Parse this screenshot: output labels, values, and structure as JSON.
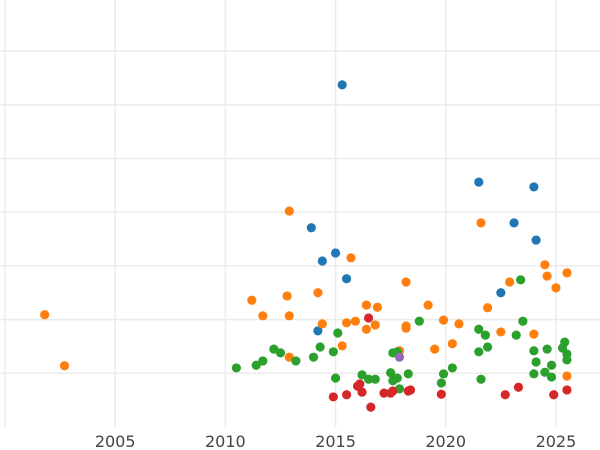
{
  "chart_data": {
    "type": "scatter",
    "title": "",
    "xlabel": "",
    "ylabel": "",
    "xlim": [
      2000,
      2027
    ],
    "ylim": [
      0,
      7.95
    ],
    "x_ticks": [
      "2005",
      "2010",
      "2015",
      "2020",
      "2025"
    ],
    "y_gridlines": [
      1,
      2,
      3,
      4,
      5,
      6,
      7
    ],
    "grid": true,
    "legend": "none",
    "series": [
      {
        "color": "#1f77b4",
        "points": [
          [
            2015.3,
            6.37
          ],
          [
            2021.5,
            4.56
          ],
          [
            2024.0,
            4.47
          ],
          [
            2013.9,
            3.71
          ],
          [
            2023.1,
            3.8
          ],
          [
            2024.1,
            3.48
          ],
          [
            2015.0,
            3.24
          ],
          [
            2014.4,
            3.09
          ],
          [
            2015.5,
            2.76
          ],
          [
            2022.5,
            2.5
          ],
          [
            2014.2,
            1.79
          ]
        ]
      },
      {
        "color": "#ff7f0e",
        "points": [
          [
            2001.8,
            2.09
          ],
          [
            2002.7,
            1.14
          ],
          [
            2012.9,
            4.02
          ],
          [
            2021.6,
            3.8
          ],
          [
            2015.7,
            3.15
          ],
          [
            2024.5,
            3.02
          ],
          [
            2024.6,
            2.81
          ],
          [
            2025.5,
            2.87
          ],
          [
            2025.0,
            2.59
          ],
          [
            2018.2,
            2.7
          ],
          [
            2011.2,
            2.36
          ],
          [
            2012.8,
            2.44
          ],
          [
            2014.2,
            2.5
          ],
          [
            2011.7,
            2.07
          ],
          [
            2012.9,
            2.07
          ],
          [
            2016.4,
            2.27
          ],
          [
            2016.9,
            2.23
          ],
          [
            2019.2,
            2.27
          ],
          [
            2021.9,
            2.22
          ],
          [
            2022.9,
            2.7
          ],
          [
            2014.4,
            1.92
          ],
          [
            2015.5,
            1.94
          ],
          [
            2015.9,
            1.97
          ],
          [
            2016.4,
            1.82
          ],
          [
            2016.8,
            1.9
          ],
          [
            2019.9,
            1.99
          ],
          [
            2020.6,
            1.92
          ],
          [
            2018.2,
            1.88
          ],
          [
            2018.2,
            1.84
          ],
          [
            2022.5,
            1.77
          ],
          [
            2024.0,
            1.73
          ],
          [
            2015.3,
            1.51
          ],
          [
            2019.5,
            1.45
          ],
          [
            2020.3,
            1.55
          ],
          [
            2017.9,
            1.42
          ],
          [
            2012.9,
            1.3
          ],
          [
            2025.5,
            0.95
          ]
        ]
      },
      {
        "color": "#2ca02c",
        "points": [
          [
            2010.5,
            1.1
          ],
          [
            2011.4,
            1.15
          ],
          [
            2011.7,
            1.23
          ],
          [
            2012.2,
            1.45
          ],
          [
            2012.5,
            1.38
          ],
          [
            2013.2,
            1.23
          ],
          [
            2014.0,
            1.3
          ],
          [
            2014.3,
            1.49
          ],
          [
            2015.1,
            1.75
          ],
          [
            2014.9,
            1.4
          ],
          [
            2015.0,
            0.91
          ],
          [
            2016.2,
            0.97
          ],
          [
            2016.5,
            0.89
          ],
          [
            2016.8,
            0.89
          ],
          [
            2017.5,
            1.01
          ],
          [
            2017.6,
            0.86
          ],
          [
            2017.8,
            0.91
          ],
          [
            2017.9,
            0.71
          ],
          [
            2017.6,
            1.38
          ],
          [
            2017.8,
            1.4
          ],
          [
            2018.3,
            0.99
          ],
          [
            2018.8,
            1.97
          ],
          [
            2019.9,
            0.99
          ],
          [
            2019.8,
            0.82
          ],
          [
            2020.3,
            1.1
          ],
          [
            2021.5,
            1.82
          ],
          [
            2021.8,
            1.71
          ],
          [
            2021.9,
            1.49
          ],
          [
            2021.5,
            1.4
          ],
          [
            2021.6,
            0.89
          ],
          [
            2023.2,
            1.71
          ],
          [
            2023.4,
            2.74
          ],
          [
            2023.5,
            1.97
          ],
          [
            2024.0,
            1.42
          ],
          [
            2024.1,
            1.21
          ],
          [
            2024.6,
            1.45
          ],
          [
            2024.8,
            1.15
          ],
          [
            2024.0,
            0.99
          ],
          [
            2024.5,
            1.02
          ],
          [
            2024.8,
            0.93
          ],
          [
            2025.4,
            1.58
          ],
          [
            2025.3,
            1.47
          ],
          [
            2025.5,
            1.36
          ],
          [
            2025.5,
            1.25
          ]
        ]
      },
      {
        "color": "#d62728",
        "points": [
          [
            2016.5,
            2.03
          ],
          [
            2014.9,
            0.56
          ],
          [
            2015.5,
            0.6
          ],
          [
            2016.0,
            0.76
          ],
          [
            2016.1,
            0.8
          ],
          [
            2016.2,
            0.65
          ],
          [
            2016.6,
            0.37
          ],
          [
            2017.2,
            0.63
          ],
          [
            2017.5,
            0.63
          ],
          [
            2017.6,
            0.67
          ],
          [
            2018.3,
            0.67
          ],
          [
            2018.4,
            0.69
          ],
          [
            2019.8,
            0.61
          ],
          [
            2022.7,
            0.6
          ],
          [
            2023.3,
            0.74
          ],
          [
            2024.9,
            0.6
          ],
          [
            2025.5,
            0.69
          ]
        ]
      },
      {
        "color": "#9467bd",
        "points": [
          [
            2017.9,
            1.3
          ]
        ]
      }
    ]
  }
}
